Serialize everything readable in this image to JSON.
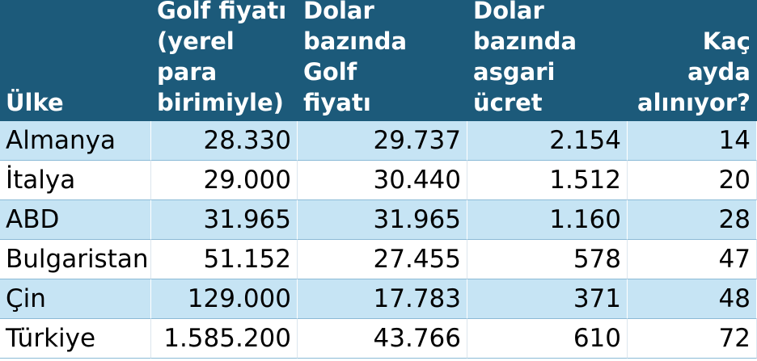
{
  "table": {
    "headers": [
      "Ülke",
      "Golf fiyatı\n(yerel para\nbirimiyle)",
      "Dolar\nbazında Golf\nfiyatı",
      "Dolar\nbazında\nasgari ücret",
      "Kaç ayda\nalınıyor?"
    ],
    "rows": [
      [
        "Almanya",
        "28.330",
        "29.737",
        "2.154",
        "14"
      ],
      [
        "İtalya",
        "29.000",
        "30.440",
        "1.512",
        "20"
      ],
      [
        "ABD",
        "31.965",
        "31.965",
        "1.160",
        "28"
      ],
      [
        "Bulgaristan",
        "51.152",
        "27.455",
        "578",
        "47"
      ],
      [
        "Çin",
        "129.000",
        "17.783",
        "371",
        "48"
      ],
      [
        "Türkiye",
        "1.585.200",
        "43.766",
        "610",
        "72"
      ]
    ]
  },
  "colors": {
    "header_bg": "#1c5a7a",
    "band_bg": "#c6e4f4"
  }
}
